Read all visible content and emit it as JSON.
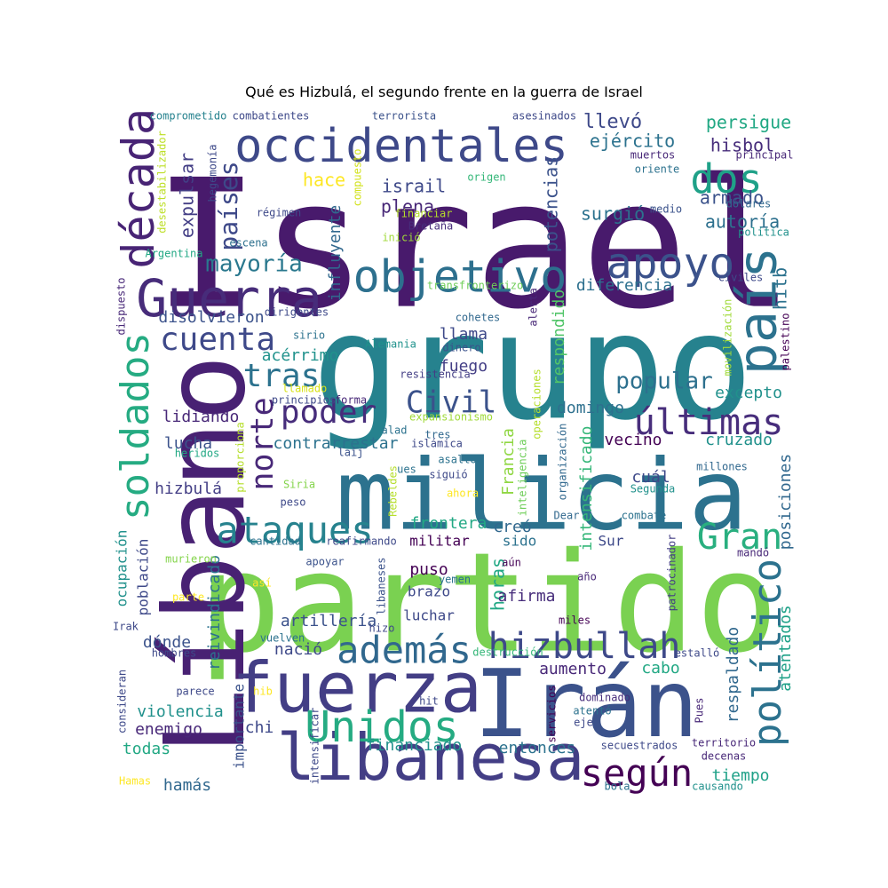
{
  "title": "Qué es Hizbulá, el segundo frente en la guerra de Israel",
  "palette": [
    "#440154",
    "#482878",
    "#3e4a89",
    "#31688e",
    "#26828e",
    "#1f9e89",
    "#35b779",
    "#6ece58",
    "#b5de2b",
    "#fde725"
  ],
  "words": [
    {
      "text": "Israel",
      "color": "#481a6c"
    },
    {
      "text": "grupo",
      "color": "#26828e"
    },
    {
      "text": "partido",
      "color": "#7ad151"
    },
    {
      "text": "milicia",
      "color": "#2c728e"
    },
    {
      "text": "Líbano",
      "color": "#482173"
    },
    {
      "text": "Irán",
      "color": "#3b528b"
    },
    {
      "text": "fuerza",
      "color": "#433e85"
    },
    {
      "text": "libanesa",
      "color": "#433e85"
    },
    {
      "text": "occidentales",
      "color": "#3e4989"
    },
    {
      "text": "objetivo",
      "color": "#2d708e"
    },
    {
      "text": "Guerra",
      "color": "#472c7a"
    },
    {
      "text": "apoyo",
      "color": "#3b528b"
    },
    {
      "text": "país",
      "color": "#2c728e"
    },
    {
      "text": "dos",
      "color": "#1fa188"
    },
    {
      "text": "década",
      "color": "#482475"
    },
    {
      "text": "Unidos",
      "color": "#25ab82"
    },
    {
      "text": "además",
      "color": "#31688e"
    },
    {
      "text": "hizbullah",
      "color": "#3e4989"
    },
    {
      "text": "según",
      "color": "#440154"
    },
    {
      "text": "últimas",
      "color": "#472d7b"
    },
    {
      "text": "político",
      "color": "#2c728e"
    },
    {
      "text": "soldados",
      "color": "#25ab82"
    },
    {
      "text": "ataques",
      "color": "#26828e"
    },
    {
      "text": "Gran",
      "color": "#29af7f"
    },
    {
      "text": "cuenta",
      "color": "#3e4989"
    },
    {
      "text": "poder",
      "color": "#472d7b"
    },
    {
      "text": "Civil",
      "color": "#3b528b"
    },
    {
      "text": "tras",
      "color": "#2c728e"
    },
    {
      "text": "norte",
      "color": "#482878"
    },
    {
      "text": "mayoría",
      "color": "#2a788e"
    },
    {
      "text": "países",
      "color": "#3e4989"
    },
    {
      "text": "popular",
      "color": "#2d708e"
    },
    {
      "text": "persigue",
      "color": "#22a884"
    },
    {
      "text": "ejército",
      "color": "#2c728e"
    },
    {
      "text": "hisbol",
      "color": "#472d7b"
    },
    {
      "text": "llevó",
      "color": "#3e4989"
    },
    {
      "text": "hace",
      "color": "#fde725"
    },
    {
      "text": "armado",
      "color": "#3b528b"
    },
    {
      "text": "autoría",
      "color": "#2d708e"
    },
    {
      "text": "israil",
      "color": "#3e4989"
    },
    {
      "text": "plena",
      "color": "#482878"
    },
    {
      "text": "surgió",
      "color": "#2c728e"
    },
    {
      "text": "potencias",
      "color": "#3b528b"
    },
    {
      "text": "expulsar",
      "color": "#433e85"
    },
    {
      "text": "hitb",
      "color": "#2c728e"
    },
    {
      "text": "influyente",
      "color": "#31688e"
    },
    {
      "text": "diferencia",
      "color": "#2d708e"
    },
    {
      "text": "respondido",
      "color": "#52c569"
    },
    {
      "text": "disolvieron",
      "color": "#3b528b"
    },
    {
      "text": "acérrimo",
      "color": "#20928c"
    },
    {
      "text": "fuego",
      "color": "#433e85"
    },
    {
      "text": "llama",
      "color": "#3e4989"
    },
    {
      "text": "excepto",
      "color": "#21918c"
    },
    {
      "text": "domingo",
      "color": "#2d708e"
    },
    {
      "text": "lidiando",
      "color": "#482878"
    },
    {
      "text": "contrarrestar",
      "color": "#2c728e"
    },
    {
      "text": "lucha",
      "color": "#3b528b"
    },
    {
      "text": "vecino",
      "color": "#440154"
    },
    {
      "text": "cruzado",
      "color": "#21918c"
    },
    {
      "text": "cuál",
      "color": "#3e4989"
    },
    {
      "text": "hizbulá",
      "color": "#433e85"
    },
    {
      "text": "Francia",
      "color": "#90d743"
    },
    {
      "text": "intensificado",
      "color": "#35b779"
    },
    {
      "text": "posiciones",
      "color": "#31688e"
    },
    {
      "text": "frontera",
      "color": "#22a884"
    },
    {
      "text": "creó",
      "color": "#31688e"
    },
    {
      "text": "militar",
      "color": "#440154"
    },
    {
      "text": "sido",
      "color": "#2c728e"
    },
    {
      "text": "Sur",
      "color": "#3e4989"
    },
    {
      "text": "ocupación",
      "color": "#21918c"
    },
    {
      "text": "población",
      "color": "#3e4989"
    },
    {
      "text": "puso",
      "color": "#440154"
    },
    {
      "text": "horas",
      "color": "#22a884"
    },
    {
      "text": "brazo",
      "color": "#3e4989"
    },
    {
      "text": "afirma",
      "color": "#472d7b"
    },
    {
      "text": "reivindicado",
      "color": "#2c728e"
    },
    {
      "text": "artillería",
      "color": "#3b528b"
    },
    {
      "text": "luchar",
      "color": "#3e4989"
    },
    {
      "text": "dónde",
      "color": "#3b528b"
    },
    {
      "text": "respaldado",
      "color": "#31688e"
    },
    {
      "text": "atentados",
      "color": "#1fa188"
    },
    {
      "text": "aumento",
      "color": "#482878"
    },
    {
      "text": "cabo",
      "color": "#22a884"
    },
    {
      "text": "nació",
      "color": "#3e4989"
    },
    {
      "text": "violencia",
      "color": "#21918c"
    },
    {
      "text": "enemigo",
      "color": "#482878"
    },
    {
      "text": "importante",
      "color": "#3b528b"
    },
    {
      "text": "chi",
      "color": "#3e4989"
    },
    {
      "text": "todas",
      "color": "#22a884"
    },
    {
      "text": "financiado",
      "color": "#21918c"
    },
    {
      "text": "entonces",
      "color": "#2c728e"
    },
    {
      "text": "tiempo",
      "color": "#1fa188"
    },
    {
      "text": "hamás",
      "color": "#31688e"
    },
    {
      "text": "comprometido",
      "color": "#26828e"
    },
    {
      "text": "combatientes",
      "color": "#3e4989"
    },
    {
      "text": "terrorista",
      "color": "#3b528b"
    },
    {
      "text": "asesinados",
      "color": "#3e4989"
    },
    {
      "text": "desestabilizador",
      "color": "#bddf26"
    },
    {
      "text": "hegemonía",
      "color": "#3e4989"
    },
    {
      "text": "compuesto",
      "color": "#d2e21b"
    },
    {
      "text": "muertos",
      "color": "#482878"
    },
    {
      "text": "principal",
      "color": "#482878"
    },
    {
      "text": "oriente",
      "color": "#2c728e"
    },
    {
      "text": "origen",
      "color": "#35b779"
    },
    {
      "text": "medio",
      "color": "#3b528b"
    },
    {
      "text": "dólares",
      "color": "#31688e"
    },
    {
      "text": "régimen",
      "color": "#3e4989"
    },
    {
      "text": "financiar",
      "color": "#b5de2b"
    },
    {
      "text": "Bretaña",
      "color": "#472d7b"
    },
    {
      "text": "política",
      "color": "#21918c"
    },
    {
      "text": "escena",
      "color": "#2d708e"
    },
    {
      "text": "inició",
      "color": "#a0da39"
    },
    {
      "text": "Argentina",
      "color": "#22a884"
    },
    {
      "text": "transfronterizo",
      "color": "#6ece58"
    },
    {
      "text": "civiles",
      "color": "#3e4989"
    },
    {
      "text": "dispuesto",
      "color": "#482878"
    },
    {
      "text": "dirigentes",
      "color": "#3e4989"
    },
    {
      "text": "cohetes",
      "color": "#31688e"
    },
    {
      "text": "alerta",
      "color": "#482878"
    },
    {
      "text": "movilización",
      "color": "#a0da39"
    },
    {
      "text": "sirio",
      "color": "#2c728e"
    },
    {
      "text": "Alemania",
      "color": "#20928c"
    },
    {
      "text": "dinero",
      "color": "#3b528b"
    },
    {
      "text": "palestino",
      "color": "#440154"
    },
    {
      "text": "resistencia",
      "color": "#433e85"
    },
    {
      "text": "llamado",
      "color": "#d8e219"
    },
    {
      "text": "operaciones",
      "color": "#b5de2b"
    },
    {
      "text": "principios",
      "color": "#3e4989"
    },
    {
      "text": "forma",
      "color": "#482878"
    },
    {
      "text": "expansionismo",
      "color": "#a0da39"
    },
    {
      "text": "alad",
      "color": "#2c728e"
    },
    {
      "text": "tres",
      "color": "#31688e"
    },
    {
      "text": "islámica",
      "color": "#3e4989"
    },
    {
      "text": "laij",
      "color": "#3b528b"
    },
    {
      "text": "organización",
      "color": "#31688e"
    },
    {
      "text": "heridos",
      "color": "#22a884"
    },
    {
      "text": "proporciona",
      "color": "#b5de2b"
    },
    {
      "text": "ues",
      "color": "#2c728e"
    },
    {
      "text": "asalto",
      "color": "#2c728e"
    },
    {
      "text": "siguió",
      "color": "#3e4989"
    },
    {
      "text": "inteligencia",
      "color": "#6ece58"
    },
    {
      "text": "millones",
      "color": "#31688e"
    },
    {
      "text": "Siria",
      "color": "#84d44b"
    },
    {
      "text": "Rebeldes",
      "color": "#b5de2b"
    },
    {
      "text": "ahora",
      "color": "#fde725"
    },
    {
      "text": "Segunda",
      "color": "#21918c"
    },
    {
      "text": "peso",
      "color": "#3e4989"
    },
    {
      "text": "Dear",
      "color": "#31688e"
    },
    {
      "text": "combate",
      "color": "#2c728e"
    },
    {
      "text": "patrocinador",
      "color": "#433e85"
    },
    {
      "text": "cantidad",
      "color": "#2c728e"
    },
    {
      "text": "reafirmando",
      "color": "#3e4989"
    },
    {
      "text": "murieron",
      "color": "#84d44b"
    },
    {
      "text": "apoyar",
      "color": "#3b528b"
    },
    {
      "text": "aún",
      "color": "#440154"
    },
    {
      "text": "mandó",
      "color": "#482878"
    },
    {
      "text": "libaneses",
      "color": "#3b528b"
    },
    {
      "text": "yemen",
      "color": "#2c728e"
    },
    {
      "text": "año",
      "color": "#482878"
    },
    {
      "text": "así",
      "color": "#fde725"
    },
    {
      "text": "parte",
      "color": "#fde725"
    },
    {
      "text": "Irak",
      "color": "#3e4989"
    },
    {
      "text": "miles",
      "color": "#440154"
    },
    {
      "text": "hizo",
      "color": "#3e4989"
    },
    {
      "text": "vuelven",
      "color": "#2c728e"
    },
    {
      "text": "destrucción",
      "color": "#35b779"
    },
    {
      "text": "estalló",
      "color": "#3e4989"
    },
    {
      "text": "hombres",
      "color": "#3e4989"
    },
    {
      "text": "consideran",
      "color": "#3e4989"
    },
    {
      "text": "parece",
      "color": "#3e4989"
    },
    {
      "text": "hib",
      "color": "#fde725"
    },
    {
      "text": "hit",
      "color": "#3e4989"
    },
    {
      "text": "dominado",
      "color": "#472d7b"
    },
    {
      "text": "atentó",
      "color": "#2c728e"
    },
    {
      "text": "eje",
      "color": "#3e4989"
    },
    {
      "text": "servicios",
      "color": "#440154"
    },
    {
      "text": "Pues",
      "color": "#482878"
    },
    {
      "text": "intensificar",
      "color": "#3e4989"
    },
    {
      "text": "secuestrados",
      "color": "#3e4989"
    },
    {
      "text": "territorio",
      "color": "#482878"
    },
    {
      "text": "decenas",
      "color": "#482878"
    },
    {
      "text": "Hamas",
      "color": "#fde725"
    },
    {
      "text": "bola",
      "color": "#2c728e"
    },
    {
      "text": "causando",
      "color": "#21918c"
    }
  ]
}
